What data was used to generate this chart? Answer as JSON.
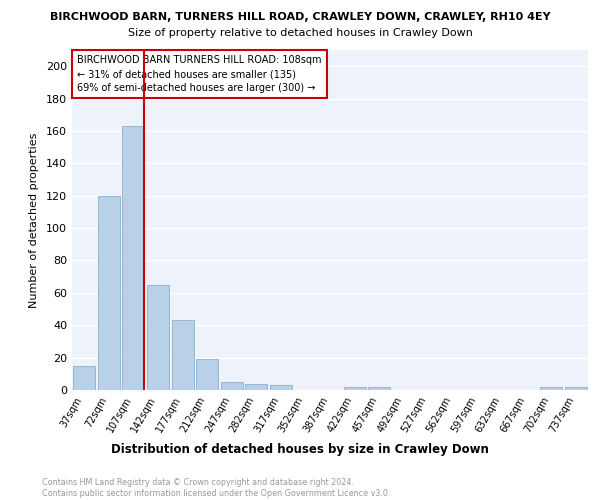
{
  "title_line1": "BIRCHWOOD BARN, TURNERS HILL ROAD, CRAWLEY DOWN, CRAWLEY, RH10 4EY",
  "title_line2": "Size of property relative to detached houses in Crawley Down",
  "xlabel": "Distribution of detached houses by size in Crawley Down",
  "ylabel": "Number of detached properties",
  "footer": "Contains HM Land Registry data © Crown copyright and database right 2024.\nContains public sector information licensed under the Open Government Licence v3.0.",
  "categories": [
    "37sqm",
    "72sqm",
    "107sqm",
    "142sqm",
    "177sqm",
    "212sqm",
    "247sqm",
    "282sqm",
    "317sqm",
    "352sqm",
    "387sqm",
    "422sqm",
    "457sqm",
    "492sqm",
    "527sqm",
    "562sqm",
    "597sqm",
    "632sqm",
    "667sqm",
    "702sqm",
    "737sqm"
  ],
  "values": [
    15,
    120,
    163,
    65,
    43,
    19,
    5,
    4,
    3,
    0,
    0,
    2,
    2,
    0,
    0,
    0,
    0,
    0,
    0,
    2,
    2
  ],
  "bar_color": "#b8d0e8",
  "bar_edge_color": "#8ab0cc",
  "vline_color": "#cc0000",
  "annotation_text": "BIRCHWOOD BARN TURNERS HILL ROAD: 108sqm\n← 31% of detached houses are smaller (135)\n69% of semi-detached houses are larger (300) →",
  "annotation_box_edge": "#cc0000",
  "background_color": "#eef2fb",
  "grid_color": "#ffffff",
  "ylim": [
    0,
    210
  ],
  "yticks": [
    0,
    20,
    40,
    60,
    80,
    100,
    120,
    140,
    160,
    180,
    200
  ]
}
